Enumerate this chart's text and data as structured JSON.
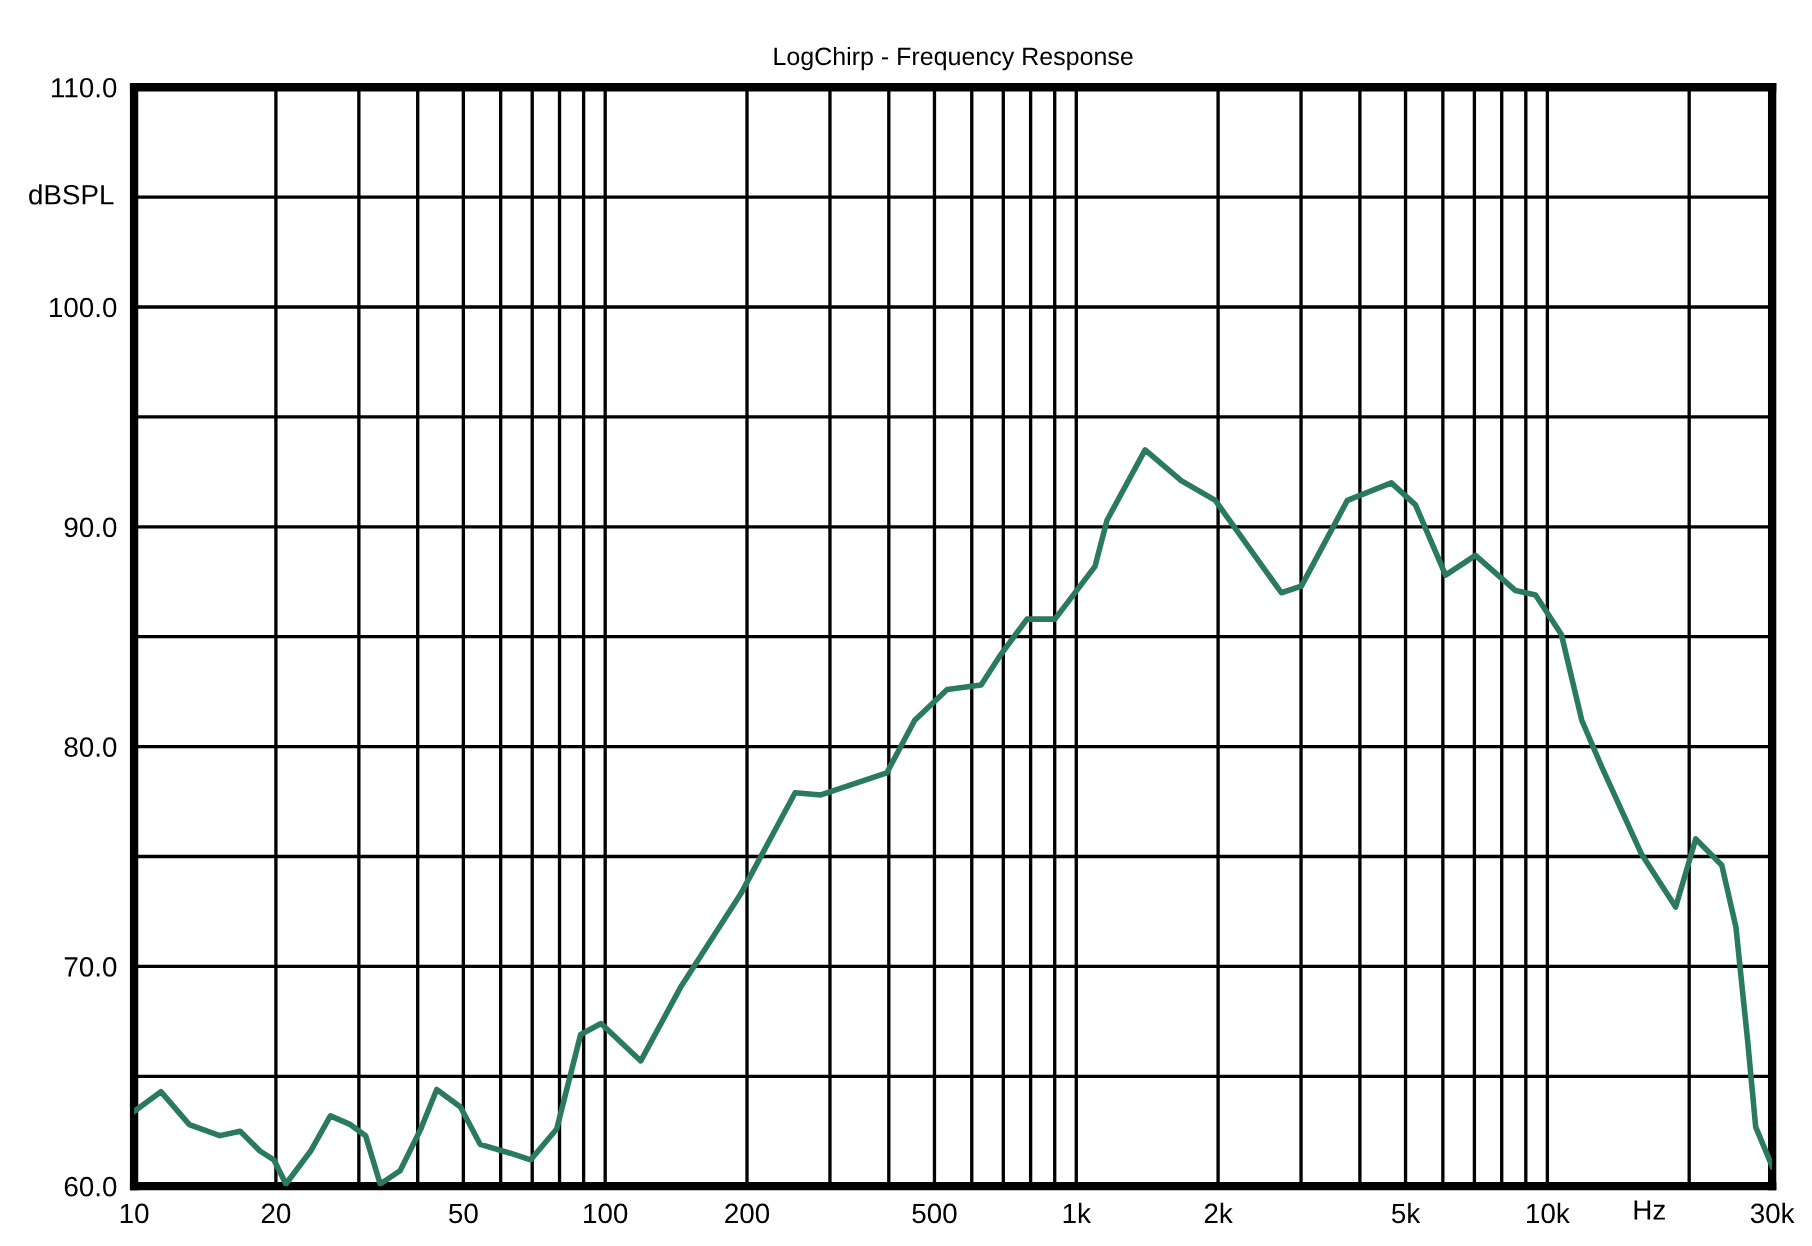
{
  "chart_data": {
    "type": "line",
    "title": "LogChirp - Frequency Response",
    "xlabel": "Hz",
    "ylabel": "dBSPL",
    "log": "x",
    "grid": true,
    "marker": "none",
    "line_style": "solid",
    "xlim": [
      10,
      30000
    ],
    "ylim": [
      60,
      110
    ],
    "xticks": [
      10,
      20,
      {
        "value": 30,
        "label": null
      },
      {
        "value": 40,
        "label": null
      },
      50,
      {
        "value": 60,
        "label": null
      },
      {
        "value": 70,
        "label": null
      },
      {
        "value": 80,
        "label": null
      },
      {
        "value": 90,
        "label": null
      },
      100,
      200,
      {
        "value": 300,
        "label": null
      },
      {
        "value": 400,
        "label": null
      },
      500,
      {
        "value": 600,
        "label": null
      },
      {
        "value": 700,
        "label": null
      },
      {
        "value": 800,
        "label": null
      },
      {
        "value": 900,
        "label": null
      },
      {
        "value": 1000,
        "label": "1k"
      },
      {
        "value": 2000,
        "label": "2k"
      },
      {
        "value": 3000,
        "label": null
      },
      {
        "value": 4000,
        "label": null
      },
      {
        "value": 5000,
        "label": "5k"
      },
      {
        "value": 6000,
        "label": null
      },
      {
        "value": 7000,
        "label": null
      },
      {
        "value": 8000,
        "label": null
      },
      {
        "value": 9000,
        "label": null
      },
      {
        "value": 10000,
        "label": "10k"
      },
      {
        "value": 20000,
        "label": null
      },
      {
        "value": 30000,
        "label": "30k"
      }
    ],
    "yticks": [
      {
        "value": 60,
        "label": "60.0"
      },
      {
        "value": 65,
        "label": null
      },
      {
        "value": 70,
        "label": "70.0"
      },
      {
        "value": 75,
        "label": null
      },
      {
        "value": 80,
        "label": "80.0"
      },
      {
        "value": 85,
        "label": null
      },
      {
        "value": 90,
        "label": "90.0"
      },
      {
        "value": 95,
        "label": null
      },
      {
        "value": 100,
        "label": "100.0"
      },
      {
        "value": 105,
        "label": null
      },
      {
        "value": 110,
        "label": "110.0"
      }
    ],
    "series": [
      {
        "color": "#2a7a5e",
        "x": [
          10,
          11.4,
          13.1,
          15.2,
          16.8,
          18.5,
          19.8,
          21,
          23.7,
          26.1,
          28.8,
          31,
          33.3,
          36.7,
          40.6,
          43.9,
          49.3,
          54.3,
          62.9,
          69.5,
          78.9,
          88.7,
          98,
          119,
          145,
          194,
          253,
          287,
          396,
          454,
          532,
          628,
          692,
          786,
          901,
          1096,
          1162,
          1400,
          1670,
          1973,
          2725,
          3005,
          3762,
          4665,
          5248,
          6080,
          7037,
          8560,
          9440,
          10710,
          11830,
          13030,
          15850,
          18720,
          20650,
          23460,
          25130,
          26620,
          27680,
          30000
        ],
        "values": [
          63.4,
          64.3,
          62.8,
          62.3,
          62.5,
          61.6,
          61.2,
          60.1,
          61.6,
          63.2,
          62.8,
          62.3,
          60.1,
          60.7,
          62.6,
          64.4,
          63.6,
          61.9,
          61.5,
          61.2,
          62.6,
          66.9,
          67.4,
          65.7,
          69.1,
          73.3,
          77.9,
          77.8,
          78.8,
          81.2,
          82.6,
          82.8,
          84.2,
          85.8,
          85.8,
          88.2,
          90.3,
          93.5,
          92.1,
          91.2,
          87.0,
          87.3,
          91.2,
          92.0,
          91.0,
          87.8,
          88.7,
          87.1,
          86.9,
          85.1,
          81.2,
          79.1,
          75.1,
          72.7,
          75.8,
          74.6,
          71.8,
          66.6,
          62.7,
          60.9
        ]
      }
    ]
  }
}
